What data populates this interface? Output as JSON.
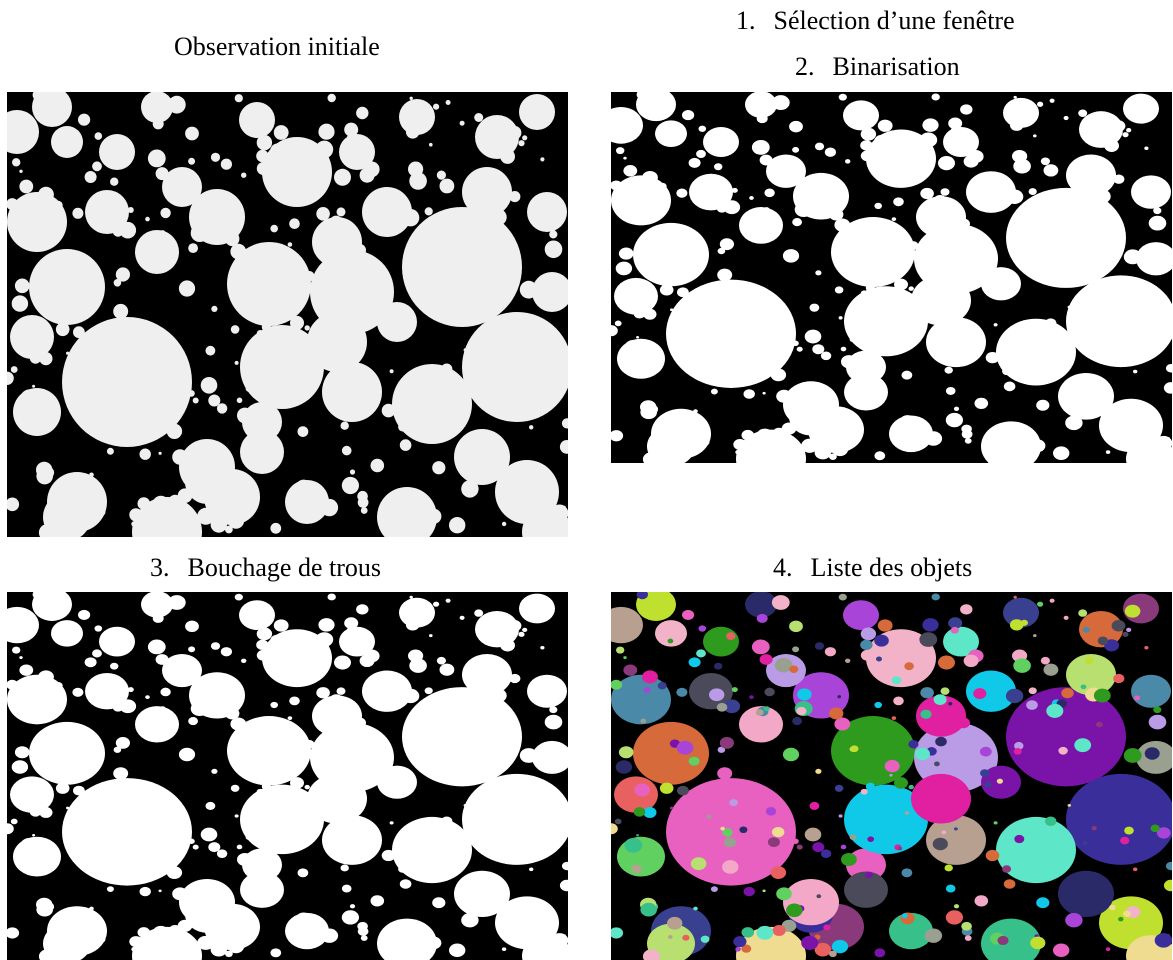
{
  "captions": {
    "initial": "Observation initiale",
    "step1": {
      "num": "1.",
      "label": "Sélection d’une fenêtre"
    },
    "step2": {
      "num": "2.",
      "label": "Binarisation"
    },
    "step3": {
      "num": "3.",
      "label": "Bouchage de trous"
    },
    "step4": {
      "num": "4.",
      "label": "Liste des objets"
    }
  },
  "colors": {
    "background": "#000000",
    "particle": "#ffffff",
    "grey_particle": "#efefef",
    "object_palette": [
      "#e860c0",
      "#7a14a8",
      "#3a2e9a",
      "#2e9a1e",
      "#b99be6",
      "#5ee6c8",
      "#d66a3a",
      "#4a8aa8",
      "#b8a090",
      "#f2b2c8",
      "#a845d8",
      "#f0dc90",
      "#38c08a",
      "#c0e030",
      "#2a2a68",
      "#3a4090",
      "#8a3a7a",
      "#10c8e8",
      "#e020a0",
      "#f4a8c8",
      "#4a4a5a",
      "#b8e070",
      "#9aa090",
      "#60d060",
      "#e86060"
    ]
  }
}
